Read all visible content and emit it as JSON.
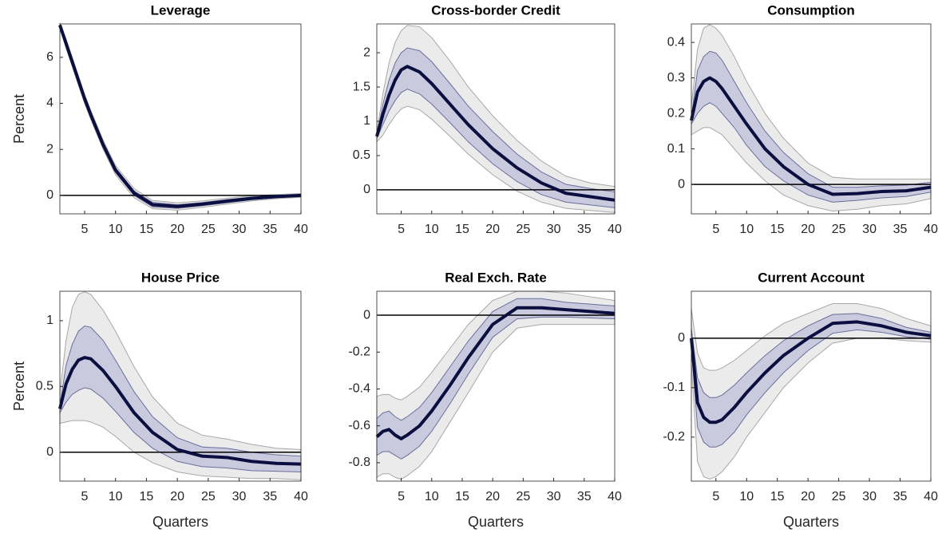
{
  "chart_data": [
    {
      "type": "line",
      "title": "Leverage",
      "ylabel": "Percent",
      "x": [
        1,
        2,
        3,
        4,
        5,
        6,
        8,
        10,
        13,
        16,
        20,
        24,
        28,
        32,
        36,
        40
      ],
      "xlim": [
        1,
        40
      ],
      "xticks": [
        5,
        10,
        15,
        20,
        25,
        30,
        35,
        40
      ],
      "ylim": [
        -0.8,
        7.45
      ],
      "yticks": [
        0,
        2,
        4,
        6
      ],
      "reference_line": 0,
      "series": [
        {
          "color": "#0b0f3f",
          "values": [
            7.4,
            6.6,
            5.8,
            5.0,
            4.2,
            3.5,
            2.2,
            1.1,
            0.1,
            -0.4,
            -0.48,
            -0.38,
            -0.25,
            -0.13,
            -0.05,
            0.0
          ]
        }
      ],
      "bands": [
        {
          "color": "#ebebeb",
          "lower": [
            7.3,
            6.4,
            5.6,
            4.8,
            4.0,
            3.3,
            2.0,
            0.9,
            -0.1,
            -0.58,
            -0.64,
            -0.52,
            -0.38,
            -0.24,
            -0.14,
            -0.08
          ],
          "upper": [
            7.5,
            6.8,
            6.0,
            5.2,
            4.4,
            3.7,
            2.4,
            1.3,
            0.3,
            -0.22,
            -0.32,
            -0.24,
            -0.12,
            -0.02,
            0.04,
            0.08
          ]
        },
        {
          "color": "#c9cade",
          "lower": [
            7.35,
            6.5,
            5.7,
            4.9,
            4.1,
            3.4,
            2.1,
            1.0,
            0.0,
            -0.5,
            -0.56,
            -0.45,
            -0.32,
            -0.19,
            -0.1,
            -0.04
          ],
          "upper": [
            7.45,
            6.7,
            5.9,
            5.1,
            4.3,
            3.6,
            2.3,
            1.2,
            0.2,
            -0.3,
            -0.4,
            -0.31,
            -0.18,
            -0.07,
            0.0,
            0.04
          ]
        }
      ]
    },
    {
      "type": "line",
      "title": "Cross-border Credit",
      "x": [
        1,
        2,
        3,
        4,
        5,
        6,
        8,
        10,
        13,
        16,
        20,
        24,
        28,
        32,
        36,
        40
      ],
      "xlim": [
        1,
        40
      ],
      "xticks": [
        5,
        10,
        15,
        20,
        25,
        30,
        35,
        40
      ],
      "ylim": [
        -0.35,
        2.42
      ],
      "yticks": [
        0,
        0.5,
        1,
        1.5,
        2
      ],
      "reference_line": 0,
      "series": [
        {
          "color": "#0b0f3f",
          "values": [
            0.78,
            1.1,
            1.38,
            1.6,
            1.75,
            1.8,
            1.72,
            1.55,
            1.25,
            0.95,
            0.6,
            0.32,
            0.1,
            -0.05,
            -0.1,
            -0.15
          ]
        }
      ],
      "bands": [
        {
          "color": "#ebebeb",
          "lower": [
            0.7,
            0.8,
            0.95,
            1.08,
            1.18,
            1.22,
            1.17,
            1.03,
            0.78,
            0.52,
            0.22,
            -0.02,
            -0.18,
            -0.27,
            -0.3,
            -0.33
          ],
          "upper": [
            0.85,
            1.4,
            1.85,
            2.15,
            2.32,
            2.4,
            2.38,
            2.22,
            1.88,
            1.5,
            1.08,
            0.72,
            0.42,
            0.2,
            0.1,
            0.05
          ]
        },
        {
          "color": "#c9cade",
          "lower": [
            0.75,
            0.95,
            1.15,
            1.3,
            1.42,
            1.47,
            1.4,
            1.25,
            0.98,
            0.7,
            0.38,
            0.12,
            -0.07,
            -0.18,
            -0.22,
            -0.26
          ],
          "upper": [
            0.8,
            1.25,
            1.6,
            1.85,
            2.0,
            2.07,
            2.03,
            1.87,
            1.55,
            1.22,
            0.85,
            0.52,
            0.26,
            0.08,
            0.02,
            -0.03
          ]
        }
      ]
    },
    {
      "type": "line",
      "title": "Consumption",
      "x": [
        1,
        2,
        3,
        4,
        5,
        6,
        8,
        10,
        13,
        16,
        20,
        24,
        28,
        32,
        36,
        40
      ],
      "xlim": [
        1,
        40
      ],
      "xticks": [
        5,
        10,
        15,
        20,
        25,
        30,
        35,
        40
      ],
      "ylim": [
        -0.083,
        0.452
      ],
      "yticks": [
        0,
        0.1,
        0.2,
        0.3,
        0.4
      ],
      "reference_line": 0,
      "series": [
        {
          "color": "#0b0f3f",
          "values": [
            0.18,
            0.26,
            0.29,
            0.3,
            0.29,
            0.27,
            0.22,
            0.17,
            0.1,
            0.05,
            0.0,
            -0.028,
            -0.026,
            -0.02,
            -0.018,
            -0.008
          ]
        }
      ],
      "bands": [
        {
          "color": "#ebebeb",
          "lower": [
            0.14,
            0.15,
            0.16,
            0.16,
            0.15,
            0.14,
            0.1,
            0.06,
            0.01,
            -0.03,
            -0.06,
            -0.075,
            -0.07,
            -0.06,
            -0.055,
            -0.04
          ],
          "upper": [
            0.22,
            0.38,
            0.44,
            0.45,
            0.44,
            0.42,
            0.36,
            0.29,
            0.2,
            0.13,
            0.06,
            0.02,
            0.015,
            0.015,
            0.015,
            0.015
          ]
        },
        {
          "color": "#c9cade",
          "lower": [
            0.17,
            0.2,
            0.22,
            0.23,
            0.22,
            0.2,
            0.16,
            0.11,
            0.05,
            0.01,
            -0.03,
            -0.05,
            -0.045,
            -0.038,
            -0.034,
            -0.022
          ],
          "upper": [
            0.19,
            0.32,
            0.36,
            0.375,
            0.37,
            0.35,
            0.29,
            0.23,
            0.15,
            0.09,
            0.03,
            -0.008,
            -0.008,
            -0.004,
            -0.002,
            0.006
          ]
        }
      ]
    },
    {
      "type": "line",
      "title": "House Price",
      "ylabel": "Percent",
      "xlabel": "Quarters",
      "x": [
        1,
        2,
        3,
        4,
        5,
        6,
        8,
        10,
        13,
        16,
        20,
        24,
        28,
        32,
        36,
        40
      ],
      "xlim": [
        1,
        40
      ],
      "xticks": [
        5,
        10,
        15,
        20,
        25,
        30,
        35,
        40
      ],
      "ylim": [
        -0.22,
        1.224
      ],
      "yticks": [
        0,
        0.5,
        1
      ],
      "reference_line": 0,
      "series": [
        {
          "color": "#0b0f3f",
          "values": [
            0.33,
            0.52,
            0.63,
            0.7,
            0.72,
            0.71,
            0.62,
            0.5,
            0.3,
            0.15,
            0.02,
            -0.03,
            -0.04,
            -0.07,
            -0.085,
            -0.09
          ]
        }
      ],
      "bands": [
        {
          "color": "#ebebeb",
          "lower": [
            0.22,
            0.23,
            0.24,
            0.24,
            0.24,
            0.23,
            0.19,
            0.12,
            0.0,
            -0.08,
            -0.15,
            -0.18,
            -0.19,
            -0.2,
            -0.2,
            -0.21
          ],
          "upper": [
            0.45,
            0.85,
            1.1,
            1.2,
            1.22,
            1.2,
            1.08,
            0.92,
            0.65,
            0.42,
            0.22,
            0.13,
            0.1,
            0.06,
            0.03,
            0.02
          ]
        },
        {
          "color": "#c9cade",
          "lower": [
            0.3,
            0.38,
            0.44,
            0.47,
            0.49,
            0.48,
            0.41,
            0.31,
            0.15,
            0.03,
            -0.07,
            -0.11,
            -0.12,
            -0.14,
            -0.145,
            -0.15
          ],
          "upper": [
            0.36,
            0.66,
            0.82,
            0.92,
            0.96,
            0.95,
            0.85,
            0.7,
            0.46,
            0.27,
            0.11,
            0.04,
            0.03,
            0.0,
            -0.02,
            -0.03
          ]
        }
      ]
    },
    {
      "type": "line",
      "title": "Real Exch. Rate",
      "xlabel": "Quarters",
      "x": [
        1,
        2,
        3,
        4,
        5,
        6,
        8,
        10,
        13,
        16,
        20,
        24,
        28,
        32,
        36,
        40
      ],
      "xlim": [
        1,
        40
      ],
      "xticks": [
        5,
        10,
        15,
        20,
        25,
        30,
        35,
        40
      ],
      "ylim": [
        -0.9,
        0.13
      ],
      "yticks": [
        -0.8,
        -0.6,
        -0.4,
        -0.2,
        0
      ],
      "reference_line": 0,
      "series": [
        {
          "color": "#0b0f3f",
          "values": [
            -0.66,
            -0.63,
            -0.62,
            -0.65,
            -0.67,
            -0.65,
            -0.6,
            -0.52,
            -0.38,
            -0.23,
            -0.05,
            0.04,
            0.04,
            0.03,
            0.02,
            0.01
          ]
        }
      ],
      "bands": [
        {
          "color": "#ebebeb",
          "lower": [
            -0.88,
            -0.86,
            -0.86,
            -0.88,
            -0.89,
            -0.87,
            -0.82,
            -0.74,
            -0.58,
            -0.42,
            -0.2,
            -0.07,
            -0.05,
            -0.05,
            -0.05,
            -0.05
          ],
          "upper": [
            -0.44,
            -0.43,
            -0.43,
            -0.45,
            -0.46,
            -0.44,
            -0.39,
            -0.31,
            -0.18,
            -0.05,
            0.08,
            0.13,
            0.13,
            0.12,
            0.1,
            0.08
          ]
        },
        {
          "color": "#c9cade",
          "lower": [
            -0.76,
            -0.74,
            -0.74,
            -0.76,
            -0.78,
            -0.76,
            -0.71,
            -0.63,
            -0.48,
            -0.32,
            -0.12,
            -0.02,
            -0.01,
            -0.01,
            -0.015,
            -0.02
          ],
          "upper": [
            -0.56,
            -0.53,
            -0.52,
            -0.55,
            -0.57,
            -0.55,
            -0.5,
            -0.42,
            -0.28,
            -0.14,
            0.02,
            0.09,
            0.09,
            0.07,
            0.06,
            0.05
          ]
        }
      ]
    },
    {
      "type": "line",
      "title": "Current Account",
      "xlabel": "Quarters",
      "x": [
        1,
        2,
        3,
        4,
        5,
        6,
        8,
        10,
        13,
        16,
        20,
        24,
        28,
        32,
        36,
        40
      ],
      "xlim": [
        1,
        40
      ],
      "xticks": [
        5,
        10,
        15,
        20,
        25,
        30,
        35,
        40
      ],
      "ylim": [
        -0.289,
        0.095
      ],
      "yticks": [
        -0.2,
        -0.1,
        0
      ],
      "reference_line": 0,
      "series": [
        {
          "color": "#0b0f3f",
          "values": [
            0.0,
            -0.13,
            -0.16,
            -0.17,
            -0.17,
            -0.165,
            -0.14,
            -0.11,
            -0.07,
            -0.035,
            0.0,
            0.03,
            0.033,
            0.025,
            0.012,
            0.005
          ]
        }
      ],
      "bands": [
        {
          "color": "#ebebeb",
          "lower": [
            -0.05,
            -0.25,
            -0.28,
            -0.285,
            -0.28,
            -0.27,
            -0.24,
            -0.2,
            -0.15,
            -0.1,
            -0.05,
            -0.01,
            0.0,
            0.0,
            -0.005,
            -0.008
          ],
          "upper": [
            0.06,
            -0.03,
            -0.06,
            -0.065,
            -0.065,
            -0.06,
            -0.045,
            -0.025,
            0.005,
            0.03,
            0.05,
            0.07,
            0.07,
            0.06,
            0.04,
            0.025
          ]
        },
        {
          "color": "#c9cade",
          "lower": [
            -0.02,
            -0.18,
            -0.21,
            -0.22,
            -0.22,
            -0.215,
            -0.19,
            -0.155,
            -0.11,
            -0.07,
            -0.025,
            0.01,
            0.017,
            0.012,
            0.003,
            -0.002
          ],
          "upper": [
            0.02,
            -0.08,
            -0.11,
            -0.12,
            -0.12,
            -0.115,
            -0.095,
            -0.07,
            -0.035,
            -0.005,
            0.025,
            0.048,
            0.05,
            0.04,
            0.022,
            0.012
          ]
        }
      ]
    }
  ]
}
